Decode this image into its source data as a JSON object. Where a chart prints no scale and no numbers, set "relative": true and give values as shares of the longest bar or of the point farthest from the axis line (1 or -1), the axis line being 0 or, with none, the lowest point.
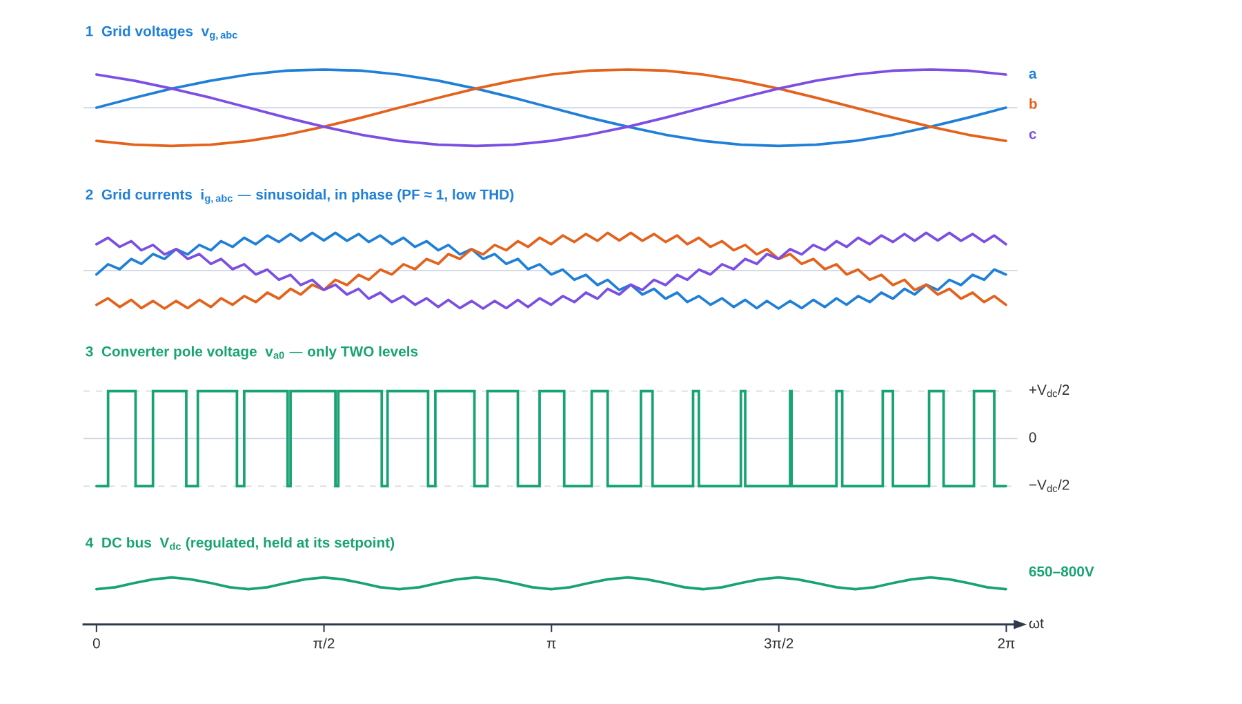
{
  "chart_data": [
    {
      "type": "line",
      "title": "1  Grid voltages  v$_{g,abc}$",
      "relative": true,
      "legend": "right",
      "xlim": [
        -0.09,
        6.36
      ],
      "tick_labels": false,
      "ref_lines": [
        {
          "axis": "y",
          "value": 0,
          "color": "#cdd5e3",
          "line_style": "solid"
        }
      ],
      "x": [
        0,
        0.26,
        0.52,
        0.79,
        1.05,
        1.31,
        1.57,
        1.83,
        2.09,
        2.36,
        2.62,
        2.88,
        3.14,
        3.4,
        3.67,
        3.93,
        4.19,
        4.45,
        4.71,
        4.97,
        5.24,
        5.5,
        5.76,
        6.02,
        6.28
      ],
      "series": [
        {
          "name": "a",
          "color": "#2080d8",
          "values": [
            0,
            0.26,
            0.5,
            0.71,
            0.87,
            0.97,
            1,
            0.97,
            0.87,
            0.71,
            0.5,
            0.26,
            0,
            -0.26,
            -0.5,
            -0.71,
            -0.87,
            -0.97,
            -1,
            -0.97,
            -0.87,
            -0.71,
            -0.5,
            -0.26,
            0
          ]
        },
        {
          "name": "b",
          "color": "#e4621c",
          "values": [
            -0.87,
            -0.97,
            -1,
            -0.97,
            -0.87,
            -0.71,
            -0.5,
            -0.26,
            0,
            0.26,
            0.5,
            0.71,
            0.87,
            0.97,
            1,
            0.97,
            0.87,
            0.71,
            0.5,
            0.26,
            0,
            -0.26,
            -0.5,
            -0.71,
            -0.87
          ]
        },
        {
          "name": "c",
          "color": "#7b4fe3",
          "values": [
            0.87,
            0.71,
            0.5,
            0.26,
            0,
            -0.26,
            -0.5,
            -0.71,
            -0.87,
            -0.97,
            -1,
            -0.97,
            -0.87,
            -0.71,
            -0.5,
            -0.26,
            0,
            0.26,
            0.5,
            0.71,
            0.87,
            0.97,
            1,
            0.97,
            0.87
          ]
        }
      ]
    },
    {
      "type": "line",
      "title": "2  Grid currents  i$_{g,abc}$ — sinusoidal, in phase (PF ≈ 1, low THD)",
      "relative": true,
      "xlim": [
        -0.09,
        6.36
      ],
      "tick_labels": false,
      "ref_lines": [
        {
          "axis": "y",
          "value": 0,
          "color": "#cdd5e3",
          "line_style": "solid"
        }
      ],
      "x": [
        0,
        0.08,
        0.16,
        0.24,
        0.31,
        0.39,
        0.47,
        0.55,
        0.63,
        0.71,
        0.79,
        0.86,
        0.94,
        1.02,
        1.1,
        1.18,
        1.26,
        1.34,
        1.41,
        1.49,
        1.57,
        1.65,
        1.73,
        1.81,
        1.88,
        1.96,
        2.04,
        2.12,
        2.2,
        2.28,
        2.36,
        2.43,
        2.51,
        2.59,
        2.67,
        2.75,
        2.83,
        2.91,
        2.98,
        3.06,
        3.14,
        3.22,
        3.3,
        3.38,
        3.46,
        3.53,
        3.61,
        3.69,
        3.77,
        3.85,
        3.93,
        4.01,
        4.08,
        4.16,
        4.24,
        4.32,
        4.4,
        4.48,
        4.56,
        4.63,
        4.71,
        4.79,
        4.87,
        4.95,
        5.03,
        5.11,
        5.18,
        5.26,
        5.34,
        5.42,
        5.5,
        5.58,
        5.65,
        5.73,
        5.81,
        5.89,
        5.97,
        6.05,
        6.13,
        6.2,
        6.28
      ],
      "series": [
        {
          "color": "#2080d8",
          "values": [
            -0.1,
            0.17,
            0.04,
            0.31,
            0.18,
            0.44,
            0.31,
            0.57,
            0.43,
            0.68,
            0.54,
            0.78,
            0.63,
            0.87,
            0.7,
            0.93,
            0.76,
            0.97,
            0.79,
            1,
            0.8,
            1,
            0.79,
            0.97,
            0.76,
            0.93,
            0.7,
            0.87,
            0.63,
            0.78,
            0.54,
            0.68,
            0.43,
            0.57,
            0.31,
            0.44,
            0.18,
            0.31,
            0.04,
            0.17,
            -0.1,
            0.03,
            -0.24,
            -0.11,
            -0.38,
            -0.24,
            -0.51,
            -0.37,
            -0.63,
            -0.48,
            -0.74,
            -0.58,
            -0.83,
            -0.67,
            -0.9,
            -0.73,
            -0.96,
            -0.77,
            -0.99,
            -0.8,
            -1,
            -0.8,
            -0.99,
            -0.77,
            -0.96,
            -0.73,
            -0.9,
            -0.67,
            -0.83,
            -0.58,
            -0.74,
            -0.48,
            -0.63,
            -0.37,
            -0.51,
            -0.24,
            -0.38,
            -0.11,
            -0.24,
            0.03,
            -0.1
          ]
        },
        {
          "color": "#e4621c",
          "values": [
            -0.9,
            -0.73,
            -0.96,
            -0.77,
            -0.99,
            -0.8,
            -1,
            -0.8,
            -0.99,
            -0.77,
            -0.96,
            -0.73,
            -0.9,
            -0.67,
            -0.83,
            -0.58,
            -0.74,
            -0.48,
            -0.63,
            -0.37,
            -0.51,
            -0.24,
            -0.38,
            -0.11,
            -0.24,
            0.03,
            -0.1,
            0.17,
            0.04,
            0.31,
            0.18,
            0.44,
            0.31,
            0.57,
            0.43,
            0.68,
            0.54,
            0.78,
            0.63,
            0.87,
            0.7,
            0.93,
            0.76,
            0.97,
            0.79,
            1,
            0.8,
            1,
            0.79,
            0.97,
            0.76,
            0.93,
            0.7,
            0.87,
            0.63,
            0.78,
            0.54,
            0.68,
            0.43,
            0.57,
            0.31,
            0.44,
            0.18,
            0.31,
            0.04,
            0.17,
            -0.1,
            0.03,
            -0.24,
            -0.11,
            -0.38,
            -0.24,
            -0.51,
            -0.37,
            -0.63,
            -0.48,
            -0.74,
            -0.58,
            -0.83,
            -0.67,
            -0.9
          ]
        },
        {
          "color": "#7b4fe3",
          "values": [
            0.7,
            0.87,
            0.63,
            0.78,
            0.54,
            0.68,
            0.43,
            0.57,
            0.31,
            0.44,
            0.18,
            0.31,
            0.04,
            0.17,
            -0.1,
            0.03,
            -0.24,
            -0.11,
            -0.38,
            -0.24,
            -0.51,
            -0.37,
            -0.63,
            -0.48,
            -0.74,
            -0.58,
            -0.83,
            -0.67,
            -0.9,
            -0.73,
            -0.96,
            -0.77,
            -0.99,
            -0.8,
            -1,
            -0.8,
            -0.99,
            -0.77,
            -0.96,
            -0.73,
            -0.9,
            -0.67,
            -0.83,
            -0.58,
            -0.74,
            -0.48,
            -0.63,
            -0.37,
            -0.51,
            -0.24,
            -0.38,
            -0.11,
            -0.24,
            0.03,
            -0.1,
            0.17,
            0.04,
            0.31,
            0.18,
            0.44,
            0.31,
            0.57,
            0.43,
            0.68,
            0.54,
            0.78,
            0.63,
            0.87,
            0.7,
            0.93,
            0.76,
            0.97,
            0.79,
            1,
            0.8,
            1,
            0.79,
            0.97,
            0.76,
            0.93,
            0.7
          ]
        }
      ]
    },
    {
      "type": "step",
      "title": "3  Converter pole voltage  v$_{a0}$ — only TWO levels",
      "relative": true,
      "xlim": [
        -0.09,
        6.36
      ],
      "tick_labels": false,
      "ref_lines": [
        {
          "axis": "y",
          "value": 1,
          "label": "+V$_{dc}$/2",
          "color": "#d5d9df",
          "line_style": "dashed"
        },
        {
          "axis": "y",
          "value": 0,
          "label": "0",
          "color": "#cdd5e3",
          "line_style": "solid"
        },
        {
          "axis": "y",
          "value": -1,
          "label": "−V$_{dc}$/2",
          "color": "#d5d9df",
          "line_style": "dashed"
        }
      ],
      "x": [
        0,
        0.08,
        0.27,
        0.39,
        0.62,
        0.7,
        0.97,
        1.02,
        1.32,
        1.34,
        1.65,
        1.67,
        1.97,
        2.01,
        2.29,
        2.34,
        2.61,
        2.7,
        2.91,
        3.06,
        3.23,
        3.42,
        3.53,
        3.76,
        3.84,
        4.12,
        4.16,
        4.45,
        4.48,
        4.79,
        4.8,
        5.11,
        5.15,
        5.43,
        5.5,
        5.75,
        5.85,
        6.06,
        6.2,
        6.28
      ],
      "series": [
        {
          "color": "#17a374",
          "values": [
            -1,
            1,
            -1,
            1,
            -1,
            1,
            -1,
            1,
            -1,
            1,
            -1,
            1,
            -1,
            1,
            -1,
            1,
            -1,
            1,
            -1,
            1,
            -1,
            1,
            -1,
            1,
            -1,
            1,
            -1,
            1,
            -1,
            1,
            -1,
            1,
            -1,
            1,
            -1,
            1,
            -1,
            1,
            -1,
            -1
          ]
        }
      ]
    },
    {
      "type": "line",
      "title": "4  DC bus  V$_{dc}$ (regulated, held at its setpoint)",
      "relative": true,
      "xlim": [
        -0.09,
        6.36
      ],
      "tick_labels": "x",
      "xlabel": "ωt",
      "xticks": [
        0,
        {
          "value": 1.571,
          "label": "π/2"
        },
        {
          "value": 3.142,
          "label": "π"
        },
        {
          "value": 4.712,
          "label": "3π/2"
        },
        {
          "value": 6.283,
          "label": "2π"
        }
      ],
      "annotations": [
        "650–800V"
      ],
      "x": [
        0,
        0.13,
        0.26,
        0.39,
        0.52,
        0.65,
        0.79,
        0.92,
        1.05,
        1.18,
        1.31,
        1.44,
        1.57,
        1.7,
        1.83,
        1.96,
        2.09,
        2.23,
        2.36,
        2.49,
        2.62,
        2.75,
        2.88,
        3.01,
        3.14,
        3.27,
        3.4,
        3.53,
        3.67,
        3.8,
        3.93,
        4.06,
        4.19,
        4.32,
        4.45,
        4.58,
        4.71,
        4.84,
        4.97,
        5.11,
        5.24,
        5.37,
        5.5,
        5.63,
        5.76,
        5.89,
        6.02,
        6.15,
        6.28
      ],
      "series": [
        {
          "color": "#17a374",
          "values": [
            0.75,
            0.79,
            0.88,
            0.96,
            1,
            0.96,
            0.88,
            0.79,
            0.75,
            0.79,
            0.88,
            0.96,
            1,
            0.96,
            0.88,
            0.79,
            0.75,
            0.79,
            0.88,
            0.96,
            1,
            0.96,
            0.88,
            0.79,
            0.75,
            0.79,
            0.88,
            0.96,
            1,
            0.96,
            0.88,
            0.79,
            0.75,
            0.79,
            0.88,
            0.96,
            1,
            0.96,
            0.88,
            0.79,
            0.75,
            0.79,
            0.88,
            0.96,
            1,
            0.96,
            0.88,
            0.79,
            0.75
          ]
        }
      ]
    }
  ]
}
